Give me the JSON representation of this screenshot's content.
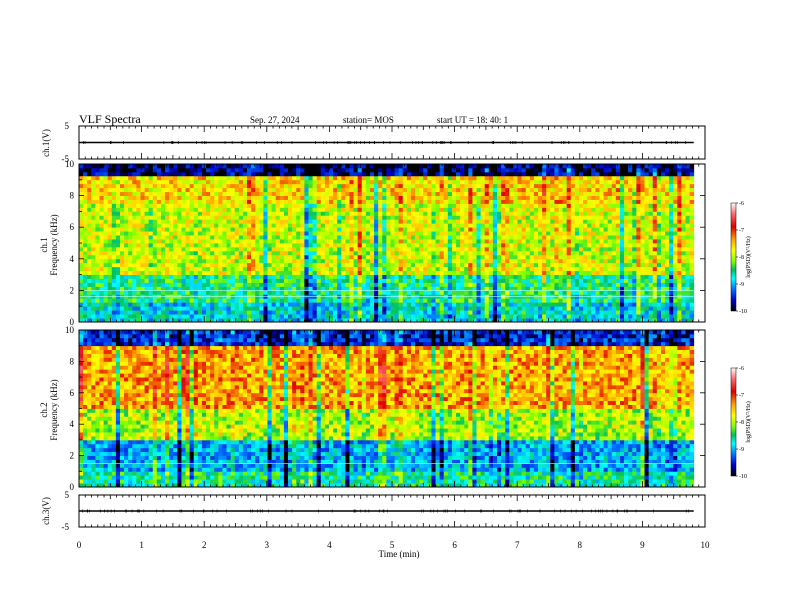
{
  "header": {
    "title": "VLF Spectra",
    "date": "Sep. 27, 2024",
    "station": "station= MOS",
    "start": "start  UT  =   18: 40: 1"
  },
  "panels": {
    "ch1_wave": {
      "ylabel": "ch.1(V)",
      "ticks": [
        "5",
        "-5"
      ]
    },
    "ch1_spec": {
      "ylabel_ch": "ch.1",
      "ylabel_freq": "Frequency (kHz)",
      "ticks": [
        "0",
        "2",
        "4",
        "6",
        "8",
        "10"
      ]
    },
    "ch2_spec": {
      "ylabel_ch": "ch.2",
      "ylabel_freq": "Frequency (kHz)",
      "ticks": [
        "0",
        "2",
        "4",
        "6",
        "8",
        "10"
      ]
    },
    "ch3_wave": {
      "ylabel": "ch.3(V)",
      "ticks": [
        "5",
        "-5"
      ]
    }
  },
  "colorbar": {
    "label": "log(PSD)(V²/Hz)",
    "ticks": [
      "-6",
      "-7",
      "-8",
      "-9",
      "-10"
    ],
    "colors": [
      "#ffffff",
      "#ff5a5a",
      "#e00000",
      "#ffa500",
      "#ffff00",
      "#7fff00",
      "#00c060",
      "#00ffff",
      "#0070ff",
      "#0000c8",
      "#000000"
    ]
  },
  "xaxis": {
    "label": "Time  (min)",
    "ticks": [
      "0",
      "1",
      "2",
      "3",
      "4",
      "5",
      "6",
      "7",
      "8",
      "9",
      "10"
    ]
  },
  "chart_data": [
    {
      "type": "line",
      "title": "",
      "ylabel": "ch.1(V)",
      "ylim": [
        -5,
        5
      ],
      "xlim": [
        0,
        10
      ],
      "series": [
        {
          "x": [
            0,
            9.82
          ],
          "values": [
            0,
            0
          ]
        }
      ]
    },
    {
      "type": "heatmap",
      "title": "VLF Spectra",
      "xlabel": "Time  (min)",
      "ylabel": "Frequency (kHz)",
      "xlim": [
        0,
        10
      ],
      "ylim": [
        0,
        10
      ],
      "data_end_min": 9.82,
      "zlim": [
        -10,
        -6
      ],
      "zlabel": "log(PSD)(V²/Hz)",
      "bands": [
        {
          "f": [
            9.2,
            10
          ],
          "z": -9.8
        },
        {
          "f": [
            7.5,
            9.2
          ],
          "z": -7.6
        },
        {
          "f": [
            3,
            7.5
          ],
          "z": -7.9
        },
        {
          "f": [
            1.2,
            3
          ],
          "z": -8.5
        },
        {
          "f": [
            0,
            1.2
          ],
          "z": -8.8
        }
      ]
    },
    {
      "type": "heatmap",
      "title": "",
      "xlabel": "Time  (min)",
      "ylabel": "Frequency (kHz)",
      "xlim": [
        0,
        10
      ],
      "ylim": [
        0,
        10
      ],
      "data_end_min": 9.82,
      "zlim": [
        -10,
        -6
      ],
      "zlabel": "log(PSD)(V²/Hz)",
      "bands": [
        {
          "f": [
            9,
            10
          ],
          "z": -9.5
        },
        {
          "f": [
            5,
            9
          ],
          "z": -7.4
        },
        {
          "f": [
            3,
            5
          ],
          "z": -8.0
        },
        {
          "f": [
            1,
            3
          ],
          "z": -9.0
        },
        {
          "f": [
            0,
            1
          ],
          "z": -8.6
        }
      ]
    },
    {
      "type": "line",
      "title": "",
      "ylabel": "ch.3(V)",
      "ylim": [
        -5,
        5
      ],
      "xlim": [
        0,
        10
      ],
      "series": [
        {
          "x": [
            0,
            9.82
          ],
          "values": [
            0,
            0
          ]
        }
      ]
    }
  ]
}
